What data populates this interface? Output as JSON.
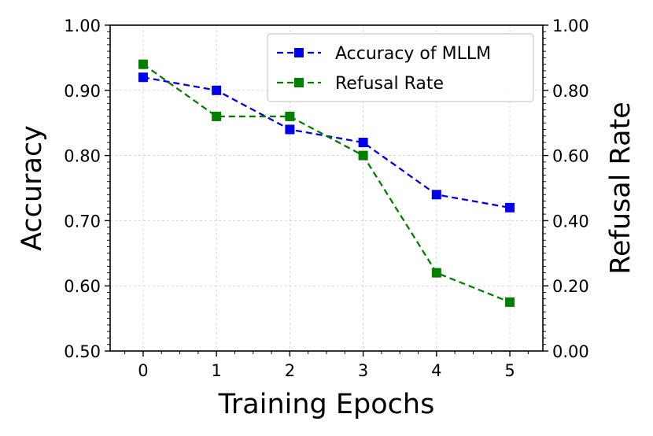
{
  "chart_data": {
    "type": "line",
    "title": "",
    "xlabel": "Training Epochs",
    "ylabel_left": "Accuracy",
    "ylabel_right": "Refusal Rate",
    "x": [
      0,
      1,
      2,
      3,
      4,
      5
    ],
    "x_ticks": [
      "0",
      "1",
      "2",
      "3",
      "4",
      "5"
    ],
    "xlim": [
      -0.45,
      5.45
    ],
    "ylim_left": [
      0.5,
      1.0
    ],
    "ylim_right": [
      0.0,
      1.0
    ],
    "y_ticks_left": [
      "0.50",
      "0.60",
      "0.70",
      "0.80",
      "0.90",
      "1.00"
    ],
    "y_ticks_right": [
      "0.00",
      "0.20",
      "0.40",
      "0.60",
      "0.80",
      "1.00"
    ],
    "grid": true,
    "legend_position": "top-right",
    "series": [
      {
        "name": "Accuracy of MLLM",
        "axis": "left",
        "color": "#0000ee",
        "line_style": "dashed",
        "marker": "square",
        "values": [
          0.92,
          0.9,
          0.84,
          0.82,
          0.74,
          0.72
        ]
      },
      {
        "name": "Refusal Rate",
        "axis": "right",
        "color": "#007f00",
        "line_style": "dashed",
        "marker": "square",
        "values": [
          0.88,
          0.72,
          0.72,
          0.6,
          0.24,
          0.15
        ]
      }
    ]
  }
}
